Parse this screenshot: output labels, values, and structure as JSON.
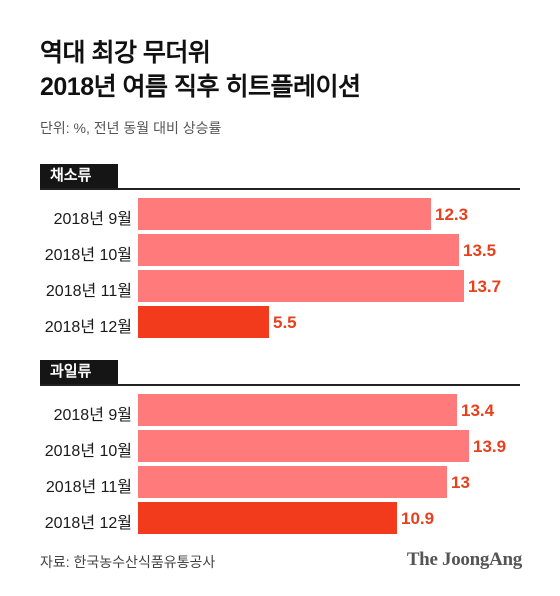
{
  "title_line1": "역대 최강 무더위",
  "title_line2": "2018년 여름 직후 히트플레이션",
  "unit_note": "단위: %, 전년 동월 대비 상승률",
  "source": "자료: 한국농수산식품유통공사",
  "brand": "The JoongAng",
  "colors": {
    "bar_normal": "#ff7b7b",
    "bar_highlight": "#f23b1d",
    "value_text": "#e8401c"
  },
  "chart_data": [
    {
      "type": "bar",
      "orientation": "horizontal",
      "section": "채소류",
      "categories": [
        "2018년 9월",
        "2018년 10월",
        "2018년 11월",
        "2018년 12월"
      ],
      "values": [
        12.3,
        13.5,
        13.7,
        5.5
      ],
      "highlight_index": 3,
      "xlim": [
        0,
        14.5
      ]
    },
    {
      "type": "bar",
      "orientation": "horizontal",
      "section": "과일류",
      "categories": [
        "2018년 9월",
        "2018년 10월",
        "2018년 11월",
        "2018년 12월"
      ],
      "values": [
        13.4,
        13.9,
        13,
        10.9
      ],
      "highlight_index": 3,
      "xlim": [
        0,
        14.5
      ]
    }
  ]
}
